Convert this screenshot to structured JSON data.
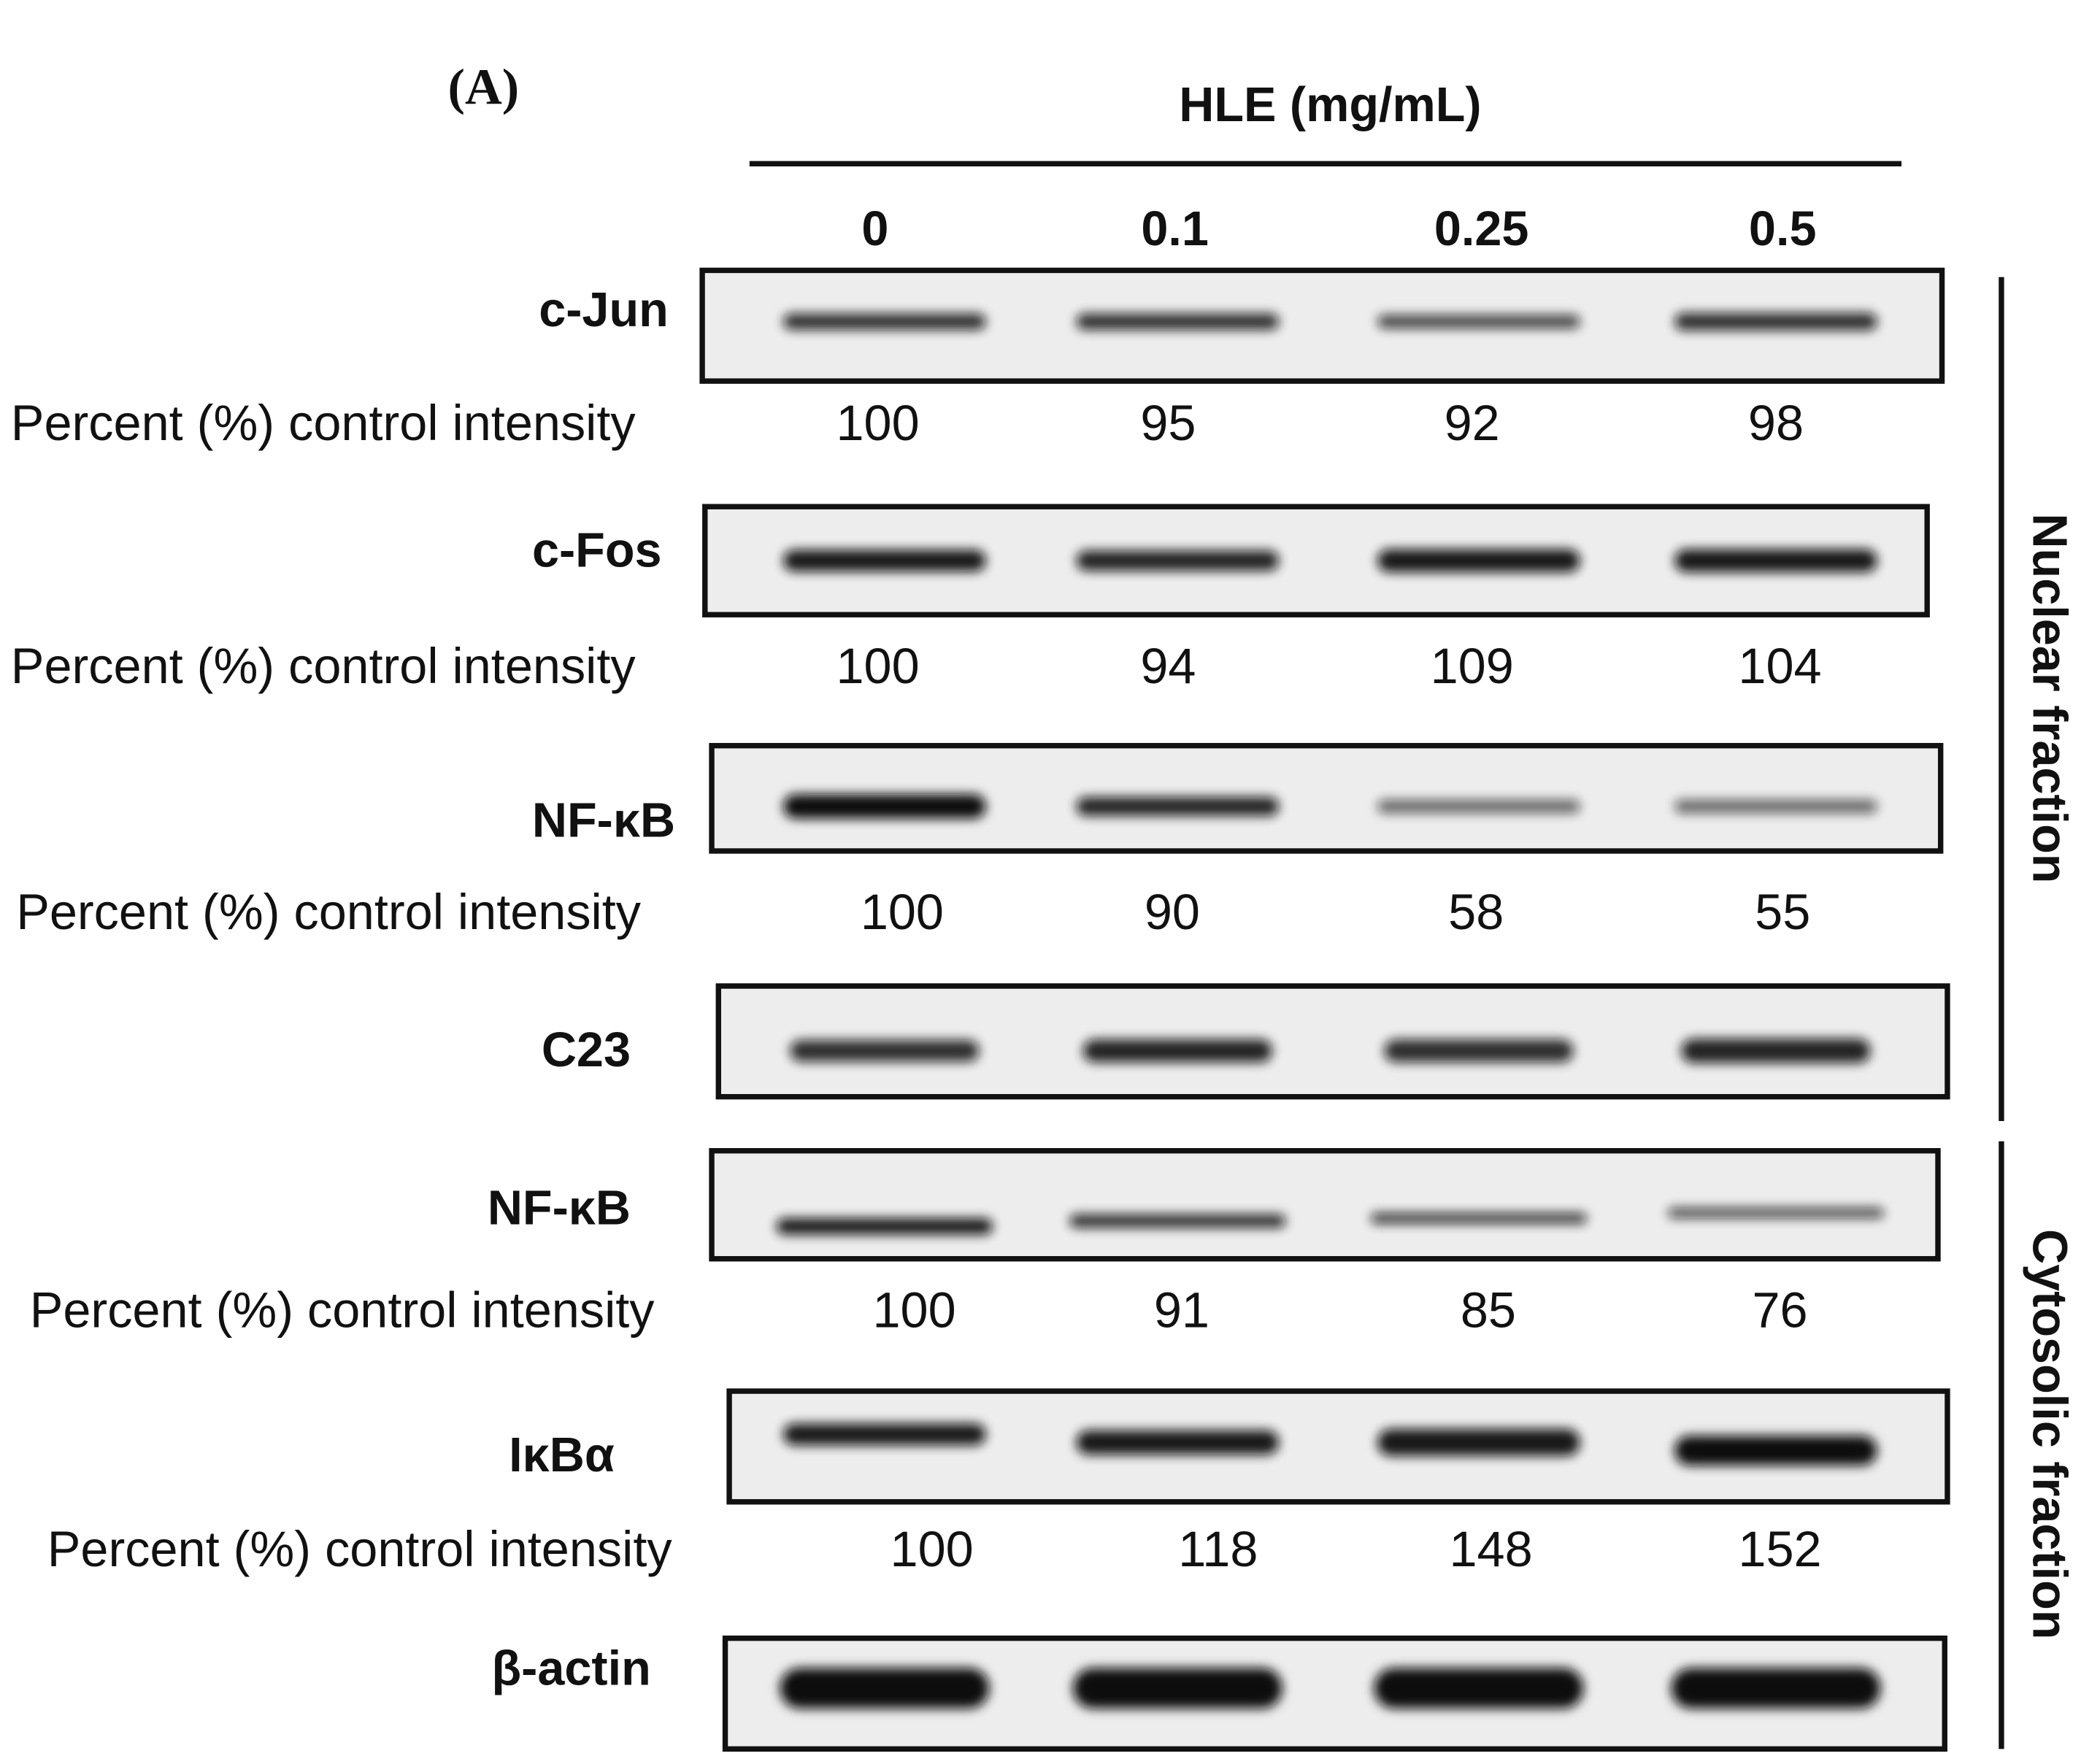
{
  "panel_label": "(A)",
  "header": "HLE (mg/mL)",
  "doses": [
    "0",
    "0.1",
    "0.25",
    "0.5"
  ],
  "intensity_label": "Percent (%) control intensity",
  "fractions": [
    "Nuclear fraction",
    "Cytosolic fraction"
  ],
  "blots": [
    {
      "label": "c-Jun",
      "intensities": [
        100,
        95,
        92,
        98
      ]
    },
    {
      "label": "c-Fos",
      "intensities": [
        100,
        94,
        109,
        104
      ]
    },
    {
      "label": "NF-κB",
      "intensities": [
        100,
        90,
        58,
        55
      ]
    },
    {
      "label": "C23"
    },
    {
      "label": "NF-κB",
      "intensities": [
        100,
        91,
        85,
        76
      ]
    },
    {
      "label": "IκBα",
      "intensities": [
        100,
        118,
        148,
        152
      ]
    },
    {
      "label": "β-actin"
    }
  ]
}
